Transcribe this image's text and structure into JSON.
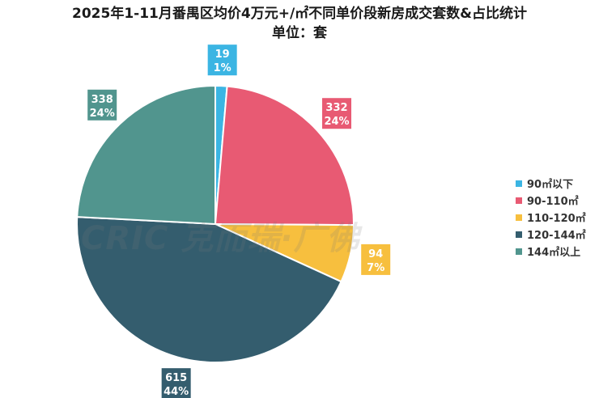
{
  "title": "2025年1-11月番禺区均价4万元+/㎡不同单价段新房成交套数&占比统计",
  "subtitle": "单位：套",
  "watermark": "CRIC 克而瑞·广佛",
  "chart_data": {
    "type": "pie",
    "title": "2025年1-11月番禺区均价4万元+/㎡不同单价段新房成交套数&占比统计",
    "subtitle": "单位：套",
    "legend_position": "right",
    "slices": [
      {
        "label": "90㎡以下",
        "value": 19,
        "percent": "1%",
        "color": "#3BB5E3"
      },
      {
        "label": "90-110㎡",
        "value": 332,
        "percent": "24%",
        "color": "#E85A73"
      },
      {
        "label": "110-120㎡",
        "value": 94,
        "percent": "7%",
        "color": "#F7BF3E"
      },
      {
        "label": "120-144㎡",
        "value": 615,
        "percent": "44%",
        "color": "#345D6E"
      },
      {
        "label": "144㎡以上",
        "value": 338,
        "percent": "24%",
        "color": "#51958E"
      }
    ]
  }
}
